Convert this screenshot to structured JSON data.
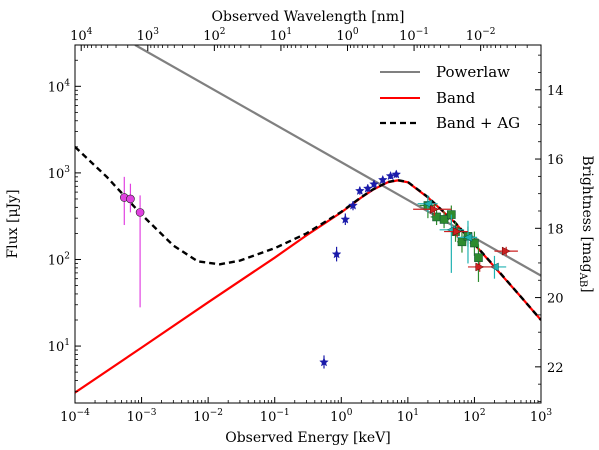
{
  "chart_data": {
    "type": "line",
    "title": "",
    "xlabel": "Observed Energy [keV]",
    "top_xlabel": "Observed Wavelength [nm]",
    "ylabel": "Flux [μJy]",
    "right_ylabel_main": "Brightness [mag",
    "right_ylabel_sub": "AB",
    "right_ylabel_end": "]",
    "xscale": "log",
    "yscale": "log",
    "xlim": [
      0.0001,
      1000
    ],
    "ylim": [
      2.2,
      30000
    ],
    "x_ticks": [
      {
        "v": 0.0001,
        "base": "10",
        "exp": "−4"
      },
      {
        "v": 0.001,
        "base": "10",
        "exp": "−3"
      },
      {
        "v": 0.01,
        "base": "10",
        "exp": "−2"
      },
      {
        "v": 0.1,
        "base": "10",
        "exp": "−1"
      },
      {
        "v": 1,
        "base": "10",
        "exp": "0"
      },
      {
        "v": 10,
        "base": "10",
        "exp": "1"
      },
      {
        "v": 100,
        "base": "10",
        "exp": "2"
      },
      {
        "v": 1000,
        "base": "10",
        "exp": "3"
      }
    ],
    "y_ticks": [
      {
        "v": 10,
        "base": "10",
        "exp": "1"
      },
      {
        "v": 100,
        "base": "10",
        "exp": "2"
      },
      {
        "v": 1000,
        "base": "10",
        "exp": "3"
      },
      {
        "v": 10000,
        "base": "10",
        "exp": "4"
      }
    ],
    "top_ticks": [
      {
        "nm": 10000,
        "base": "10",
        "exp": "4"
      },
      {
        "nm": 1000,
        "base": "10",
        "exp": "3"
      },
      {
        "nm": 100,
        "base": "10",
        "exp": "2"
      },
      {
        "nm": 10,
        "base": "10",
        "exp": "1"
      },
      {
        "nm": 1,
        "base": "10",
        "exp": "0"
      },
      {
        "nm": 0.1,
        "base": "10",
        "exp": "−1"
      },
      {
        "nm": 0.01,
        "base": "10",
        "exp": "−2"
      }
    ],
    "mag_ticks": [
      14,
      16,
      18,
      20,
      22
    ],
    "mag_zero_point_uJy": 3631000000,
    "wavelength_conversion_nm_keV": 1.23984,
    "legend": {
      "position": "top-right",
      "entries": [
        {
          "label": "Powerlaw",
          "color": "#808080",
          "dash": "solid"
        },
        {
          "label": "Band",
          "color": "#ff0000",
          "dash": "solid"
        },
        {
          "label": "Band + AG",
          "color": "#000000",
          "dash": "dashed"
        }
      ]
    },
    "series": [
      {
        "name": "Powerlaw",
        "color": "#808080",
        "points": [
          [
            0.0008,
            30000
          ],
          [
            1000,
            65
          ]
        ]
      },
      {
        "name": "Band",
        "color": "#ff0000",
        "points": [
          [
            0.0001,
            2.9
          ],
          [
            0.001,
            9.6
          ],
          [
            0.01,
            32
          ],
          [
            0.1,
            105
          ],
          [
            0.3,
            190
          ],
          [
            1,
            350
          ],
          [
            2,
            520
          ],
          [
            3,
            640
          ],
          [
            5,
            780
          ],
          [
            7,
            820
          ],
          [
            10,
            780
          ],
          [
            20,
            520
          ],
          [
            50,
            270
          ],
          [
            100,
            150
          ],
          [
            200,
            82
          ],
          [
            500,
            37
          ],
          [
            1000,
            20
          ]
        ]
      },
      {
        "name": "Band + AG",
        "color": "#000000",
        "points": [
          [
            0.0001,
            2000
          ],
          [
            0.0003,
            900
          ],
          [
            0.001,
            330
          ],
          [
            0.003,
            145
          ],
          [
            0.007,
            95
          ],
          [
            0.015,
            88
          ],
          [
            0.03,
            97
          ],
          [
            0.1,
            135
          ],
          [
            0.3,
            200
          ],
          [
            1,
            355
          ],
          [
            2,
            525
          ],
          [
            3,
            645
          ],
          [
            5,
            785
          ],
          [
            7,
            825
          ],
          [
            10,
            785
          ],
          [
            20,
            525
          ],
          [
            50,
            272
          ],
          [
            100,
            151
          ],
          [
            200,
            83
          ],
          [
            500,
            37
          ],
          [
            1000,
            20
          ]
        ]
      }
    ],
    "datasets": [
      {
        "name": "optical",
        "color": "#e040e0",
        "marker": "circle",
        "points": [
          {
            "x": 0.00055,
            "y": 520,
            "ylo": 250,
            "yhi": 900
          },
          {
            "x": 0.00068,
            "y": 500,
            "ylo": 350,
            "yhi": 750
          },
          {
            "x": 0.00095,
            "y": 350,
            "ylo": 28,
            "yhi": 550
          }
        ]
      },
      {
        "name": "uvot",
        "color": "#1a1aaa",
        "marker": "star",
        "points": [
          {
            "x": 0.55,
            "y": 6.5,
            "ylo": 5.5,
            "yhi": 7.8
          },
          {
            "x": 0.85,
            "y": 115,
            "ylo": 95,
            "yhi": 140
          },
          {
            "x": 1.15,
            "y": 290,
            "ylo": 250,
            "yhi": 340
          },
          {
            "x": 1.5,
            "y": 420,
            "ylo": 370,
            "yhi": 470
          },
          {
            "x": 1.9,
            "y": 620,
            "ylo": 560,
            "yhi": 690
          },
          {
            "x": 2.5,
            "y": 660,
            "ylo": 600,
            "yhi": 730
          },
          {
            "x": 3.1,
            "y": 740,
            "ylo": 680,
            "yhi": 810
          },
          {
            "x": 4.2,
            "y": 830,
            "ylo": 760,
            "yhi": 900
          },
          {
            "x": 5.5,
            "y": 920,
            "ylo": 850,
            "yhi": 1000
          },
          {
            "x": 6.7,
            "y": 960,
            "ylo": 880,
            "yhi": 1050
          }
        ]
      },
      {
        "name": "xrt",
        "color": "#2e8b2e",
        "marker": "square",
        "points": [
          {
            "x": 20,
            "y": 420,
            "xlo": 15,
            "xhi": 27,
            "ylo": 300,
            "yhi": 500
          },
          {
            "x": 27,
            "y": 310,
            "xlo": 22,
            "xhi": 33,
            "ylo": 250,
            "yhi": 380
          },
          {
            "x": 35,
            "y": 290,
            "xlo": 29,
            "xhi": 42,
            "ylo": 230,
            "yhi": 360
          },
          {
            "x": 45,
            "y": 330,
            "xlo": 38,
            "xhi": 52,
            "ylo": 250,
            "yhi": 420
          },
          {
            "x": 52,
            "y": 210,
            "xlo": 44,
            "xhi": 60,
            "ylo": 160,
            "yhi": 270
          },
          {
            "x": 65,
            "y": 160,
            "xlo": 55,
            "xhi": 76,
            "ylo": 120,
            "yhi": 210
          },
          {
            "x": 80,
            "y": 185,
            "xlo": 68,
            "xhi": 93,
            "ylo": 140,
            "yhi": 240
          },
          {
            "x": 100,
            "y": 155,
            "xlo": 85,
            "xhi": 115,
            "ylo": 110,
            "yhi": 210
          },
          {
            "x": 115,
            "y": 105,
            "xlo": 100,
            "xhi": 130,
            "ylo": 55,
            "yhi": 150
          }
        ]
      },
      {
        "name": "bat",
        "color": "#20b2b2",
        "marker": "tri-left",
        "points": [
          {
            "x": 20,
            "y": 440,
            "xlo": 14,
            "xhi": 28,
            "ylo": 350,
            "yhi": 550
          },
          {
            "x": 45,
            "y": 220,
            "xlo": 30,
            "xhi": 70,
            "ylo": 70,
            "yhi": 330
          },
          {
            "x": 80,
            "y": 180,
            "xlo": 55,
            "xhi": 110,
            "ylo": 90,
            "yhi": 280
          },
          {
            "x": 200,
            "y": 82,
            "xlo": 130,
            "xhi": 300,
            "ylo": 60,
            "yhi": 110
          }
        ]
      },
      {
        "name": "gbm",
        "color": "#cc2020",
        "marker": "tri-right",
        "points": [
          {
            "x": 25,
            "y": 380,
            "xlo": 12,
            "xhi": 45,
            "ylo": 320,
            "yhi": 440
          },
          {
            "x": 55,
            "y": 210,
            "xlo": 35,
            "xhi": 80,
            "ylo": 180,
            "yhi": 240
          },
          {
            "x": 120,
            "y": 82,
            "xlo": 80,
            "xhi": 200,
            "ylo": 72,
            "yhi": 93
          },
          {
            "x": 300,
            "y": 125,
            "xlo": 200,
            "xhi": 450,
            "ylo": 110,
            "yhi": 140
          }
        ]
      }
    ]
  }
}
